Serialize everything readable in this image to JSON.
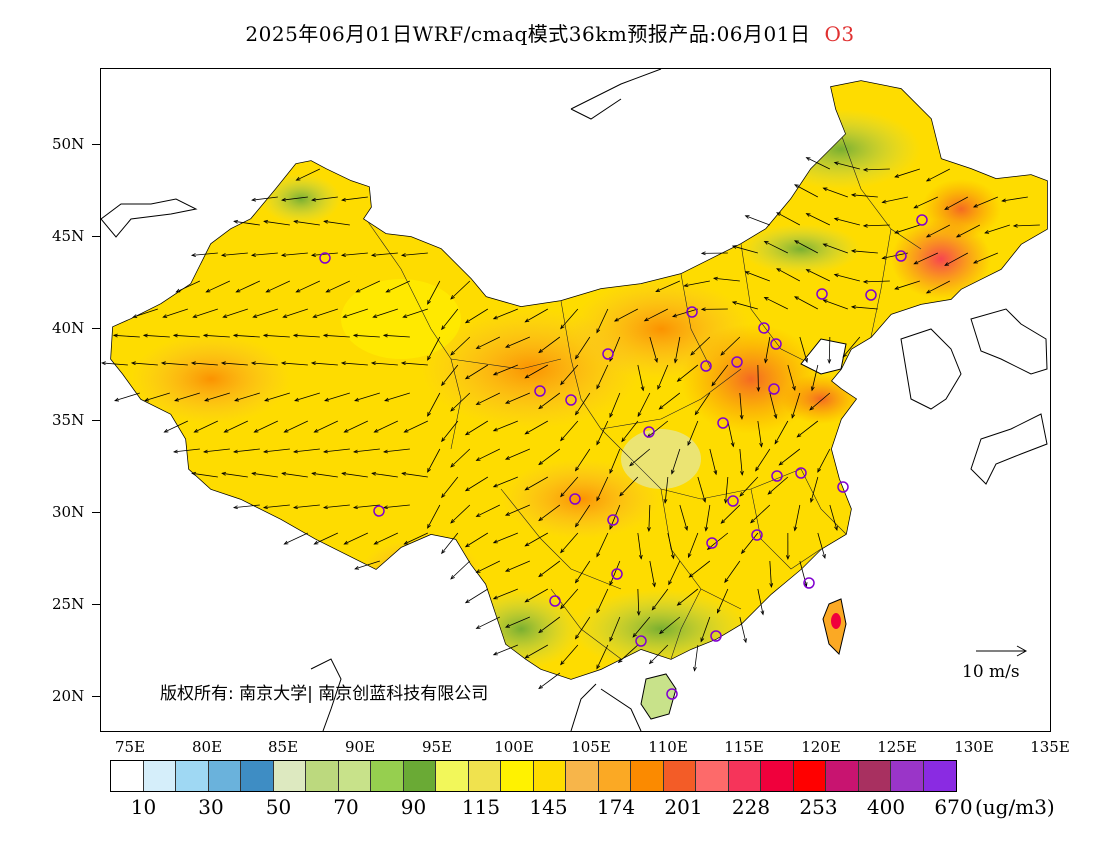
{
  "title": {
    "text": "2025年06月01日WRF/cmaq模式36km预报产品:06月01日",
    "species": "O3",
    "species_color": "#e03030"
  },
  "map": {
    "lat_labels": [
      "50N",
      "45N",
      "40N",
      "35N",
      "30N",
      "25N",
      "20N"
    ],
    "lon_labels": [
      "75E",
      "80E",
      "85E",
      "90E",
      "95E",
      "100E",
      "105E",
      "110E",
      "115E",
      "120E",
      "125E",
      "130E",
      "135E"
    ],
    "copyright": "版权所有: 南京大学| 南京创蓝科技有限公司",
    "wind_reference": "10 m/s",
    "station_marker_color": "#8000d0"
  },
  "colorbar": {
    "colors": [
      "#ffffff",
      "#d5eefa",
      "#9fd8f3",
      "#6ab2dc",
      "#3e8dc4",
      "#dde9c0",
      "#bcd97e",
      "#c8e28a",
      "#96cf4f",
      "#6aaa35",
      "#f2f75a",
      "#f0e24e",
      "#fff200",
      "#fedc00",
      "#f7b54a",
      "#fba924",
      "#fb8a00",
      "#f35c27",
      "#fd6a6a",
      "#f6345a",
      "#f0003c",
      "#ff0000",
      "#c81470",
      "#a83060",
      "#9a35c8",
      "#8a2be2"
    ],
    "labels": [
      "10",
      "30",
      "50",
      "70",
      "90",
      "115",
      "145",
      "174",
      "201",
      "228",
      "253",
      "400",
      "670"
    ],
    "unit": "(ug/m3)"
  }
}
